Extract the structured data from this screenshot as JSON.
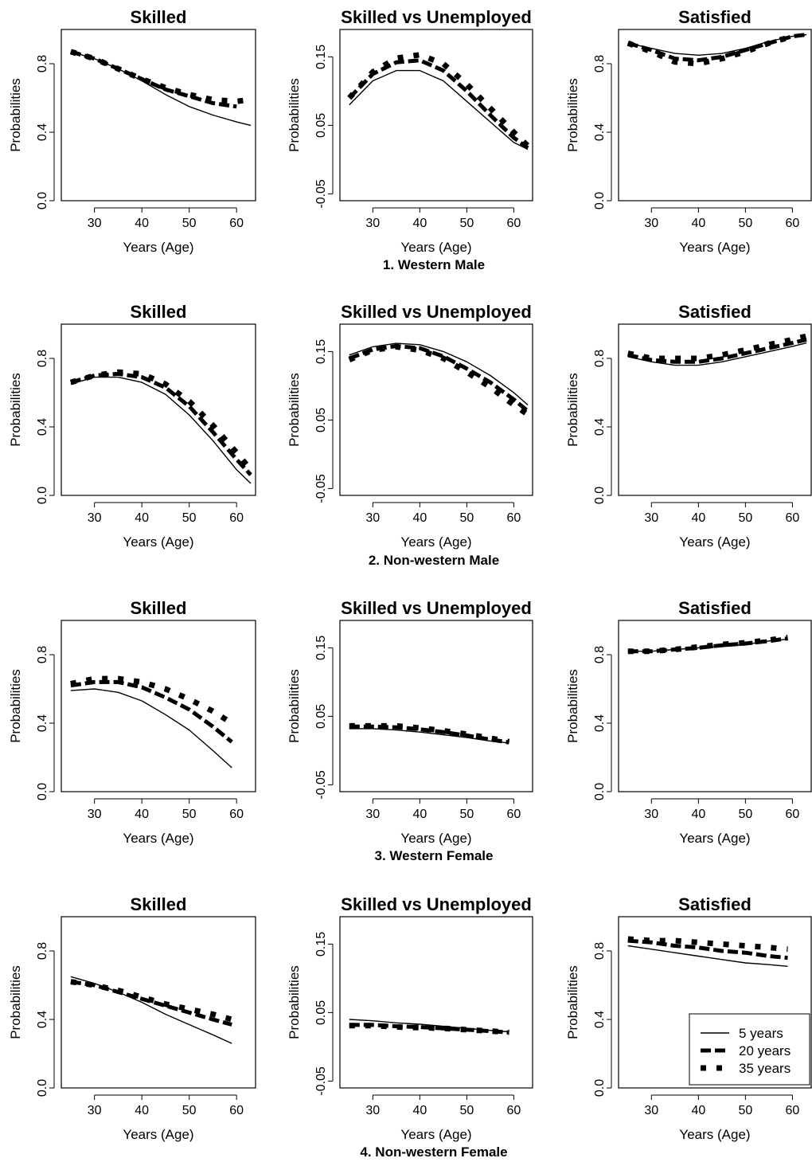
{
  "figure": {
    "panel_titles": [
      "Skilled",
      "Skilled vs Unemployed",
      "Satisfied"
    ],
    "row_titles": [
      "1. Western Male",
      "2. Non-western Male",
      "3. Western Female",
      "4. Non-western Female"
    ],
    "xlabel": "Years (Age)",
    "ylabel": "Probabilities",
    "legend": [
      "5 years",
      "20 years",
      "35 years"
    ],
    "colors": {
      "line": "#000000",
      "background": "#ffffff"
    }
  },
  "chart_data": [
    {
      "type": "line",
      "group": "1. Western Male",
      "title": "Skilled",
      "xlabel": "Years (Age)",
      "ylabel": "Probabilities",
      "xlim": [
        23,
        64
      ],
      "ylim": [
        0,
        1
      ],
      "xticks": [
        30,
        40,
        50,
        60
      ],
      "yticks": [
        "0.0",
        "0.4",
        "0.8"
      ],
      "x": [
        25,
        30,
        35,
        40,
        45,
        50,
        55,
        60,
        63
      ],
      "series": [
        {
          "name": "5 years",
          "values": [
            0.87,
            0.83,
            0.77,
            0.7,
            0.62,
            0.55,
            0.5,
            0.46,
            0.44
          ]
        },
        {
          "name": "20 years",
          "values": [
            0.87,
            0.83,
            0.77,
            0.71,
            0.65,
            0.61,
            0.57,
            0.55,
            null
          ]
        },
        {
          "name": "35 years",
          "values": [
            0.87,
            0.83,
            0.77,
            0.71,
            0.66,
            0.62,
            0.59,
            0.58,
            0.59
          ]
        }
      ]
    },
    {
      "type": "line",
      "group": "1. Western Male",
      "title": "Skilled vs Unemployed",
      "xlabel": "Years (Age)",
      "ylabel": "Probabilities",
      "xlim": [
        23,
        64
      ],
      "ylim": [
        -0.06,
        0.19
      ],
      "xticks": [
        30,
        40,
        50,
        60
      ],
      "yticks": [
        "-0.05",
        "0.05",
        "0.15"
      ],
      "x": [
        25,
        30,
        35,
        40,
        45,
        50,
        55,
        60,
        63
      ],
      "series": [
        {
          "name": "5 years",
          "values": [
            0.08,
            0.115,
            0.13,
            0.13,
            0.115,
            0.085,
            0.055,
            0.025,
            0.015
          ]
        },
        {
          "name": "20 years",
          "values": [
            0.09,
            0.125,
            0.142,
            0.145,
            0.13,
            0.1,
            0.065,
            0.032,
            0.017
          ]
        },
        {
          "name": "35 years",
          "values": [
            0.09,
            0.128,
            0.148,
            0.153,
            0.14,
            0.11,
            0.075,
            0.04,
            0.02
          ]
        }
      ]
    },
    {
      "type": "line",
      "group": "1. Western Male",
      "title": "Satisfied",
      "xlabel": "Years (Age)",
      "ylabel": "Probabilities",
      "xlim": [
        23,
        64
      ],
      "ylim": [
        0,
        1
      ],
      "xticks": [
        30,
        40,
        50,
        60
      ],
      "yticks": [
        "0.0",
        "0.4",
        "0.8"
      ],
      "x": [
        25,
        30,
        35,
        40,
        45,
        50,
        55,
        60,
        63
      ],
      "series": [
        {
          "name": "5 years",
          "values": [
            0.92,
            0.89,
            0.86,
            0.85,
            0.86,
            0.89,
            0.93,
            0.96,
            0.97
          ]
        },
        {
          "name": "20 years",
          "values": [
            0.92,
            0.88,
            0.83,
            0.82,
            0.84,
            0.88,
            0.92,
            0.96,
            0.97
          ]
        },
        {
          "name": "35 years",
          "values": [
            0.92,
            0.87,
            0.81,
            0.8,
            0.83,
            0.87,
            0.92,
            0.96,
            null
          ]
        }
      ]
    },
    {
      "type": "line",
      "group": "2. Non-western Male",
      "title": "Skilled",
      "xlabel": "Years (Age)",
      "ylabel": "Probabilities",
      "xlim": [
        23,
        64
      ],
      "ylim": [
        0,
        1
      ],
      "xticks": [
        30,
        40,
        50,
        60
      ],
      "yticks": [
        "0.0",
        "0.4",
        "0.8"
      ],
      "x": [
        25,
        30,
        35,
        40,
        45,
        50,
        55,
        60,
        63
      ],
      "series": [
        {
          "name": "5 years",
          "values": [
            0.65,
            0.69,
            0.69,
            0.66,
            0.59,
            0.47,
            0.32,
            0.15,
            0.07
          ]
        },
        {
          "name": "20 years",
          "values": [
            0.66,
            0.7,
            0.71,
            0.69,
            0.63,
            0.52,
            0.37,
            0.21,
            0.12
          ]
        },
        {
          "name": "35 years",
          "values": [
            0.66,
            0.7,
            0.72,
            0.71,
            0.65,
            0.55,
            0.41,
            0.25,
            0.15
          ]
        }
      ]
    },
    {
      "type": "line",
      "group": "2. Non-western Male",
      "title": "Skilled vs Unemployed",
      "xlabel": "Years (Age)",
      "ylabel": "Probabilities",
      "xlim": [
        23,
        64
      ],
      "ylim": [
        -0.06,
        0.19
      ],
      "xticks": [
        30,
        40,
        50,
        60
      ],
      "yticks": [
        "-0.05",
        "0.05",
        "0.15"
      ],
      "x": [
        25,
        30,
        35,
        40,
        45,
        50,
        55,
        60,
        63
      ],
      "series": [
        {
          "name": "5 years",
          "values": [
            0.145,
            0.157,
            0.162,
            0.16,
            0.15,
            0.135,
            0.115,
            0.09,
            0.072
          ]
        },
        {
          "name": "20 years",
          "values": [
            0.14,
            0.153,
            0.158,
            0.155,
            0.143,
            0.125,
            0.105,
            0.08,
            0.063
          ]
        },
        {
          "name": "35 years",
          "values": [
            0.138,
            0.152,
            0.157,
            0.152,
            0.14,
            0.12,
            0.098,
            0.072,
            0.058
          ]
        }
      ]
    },
    {
      "type": "line",
      "group": "2. Non-western Male",
      "title": "Satisfied",
      "xlabel": "Years (Age)",
      "ylabel": "Probabilities",
      "xlim": [
        23,
        64
      ],
      "ylim": [
        0,
        1
      ],
      "xticks": [
        30,
        40,
        50,
        60
      ],
      "yticks": [
        "0.0",
        "0.4",
        "0.8"
      ],
      "x": [
        25,
        30,
        35,
        40,
        45,
        50,
        55,
        60,
        63
      ],
      "series": [
        {
          "name": "5 years",
          "values": [
            0.81,
            0.78,
            0.76,
            0.76,
            0.78,
            0.81,
            0.84,
            0.87,
            0.89
          ]
        },
        {
          "name": "20 years",
          "values": [
            0.82,
            0.79,
            0.78,
            0.78,
            0.8,
            0.83,
            0.86,
            0.89,
            0.91
          ]
        },
        {
          "name": "35 years",
          "values": [
            0.83,
            0.8,
            0.8,
            0.8,
            0.82,
            0.85,
            0.88,
            0.91,
            0.93
          ]
        }
      ]
    },
    {
      "type": "line",
      "group": "3. Western Female",
      "title": "Skilled",
      "xlabel": "Years (Age)",
      "ylabel": "Probabilities",
      "xlim": [
        23,
        64
      ],
      "ylim": [
        0,
        1
      ],
      "xticks": [
        30,
        40,
        50,
        60
      ],
      "yticks": [
        "0.0",
        "0.4",
        "0.8"
      ],
      "x": [
        25,
        30,
        35,
        40,
        45,
        50,
        55,
        59
      ],
      "series": [
        {
          "name": "5 years",
          "values": [
            0.59,
            0.6,
            0.58,
            0.53,
            0.45,
            0.36,
            0.24,
            0.14
          ]
        },
        {
          "name": "20 years",
          "values": [
            0.62,
            0.64,
            0.64,
            0.61,
            0.55,
            0.48,
            0.38,
            0.29
          ]
        },
        {
          "name": "35 years",
          "values": [
            0.63,
            0.66,
            0.66,
            0.64,
            0.6,
            0.54,
            0.47,
            0.4
          ]
        }
      ]
    },
    {
      "type": "line",
      "group": "3. Western Female",
      "title": "Skilled vs Unemployed",
      "xlabel": "Years (Age)",
      "ylabel": "Probabilities",
      "xlim": [
        23,
        64
      ],
      "ylim": [
        -0.06,
        0.19
      ],
      "xticks": [
        30,
        40,
        50,
        60
      ],
      "yticks": [
        "-0.05",
        "0.05",
        "0.15"
      ],
      "x": [
        25,
        30,
        35,
        40,
        45,
        50,
        55,
        59
      ],
      "series": [
        {
          "name": "5 years",
          "values": [
            0.032,
            0.032,
            0.03,
            0.027,
            0.023,
            0.019,
            0.014,
            0.011
          ]
        },
        {
          "name": "20 years",
          "values": [
            0.035,
            0.035,
            0.034,
            0.031,
            0.027,
            0.022,
            0.016,
            0.012
          ]
        },
        {
          "name": "35 years",
          "values": [
            0.036,
            0.036,
            0.036,
            0.033,
            0.029,
            0.024,
            0.018,
            0.013
          ]
        }
      ]
    },
    {
      "type": "line",
      "group": "3. Western Female",
      "title": "Satisfied",
      "xlabel": "Years (Age)",
      "ylabel": "Probabilities",
      "xlim": [
        23,
        64
      ],
      "ylim": [
        0,
        1
      ],
      "xticks": [
        30,
        40,
        50,
        60
      ],
      "yticks": [
        "0.0",
        "0.4",
        "0.8"
      ],
      "x": [
        25,
        30,
        35,
        40,
        45,
        50,
        55,
        59
      ],
      "series": [
        {
          "name": "5 years",
          "values": [
            0.82,
            0.82,
            0.83,
            0.84,
            0.85,
            0.86,
            0.88,
            0.89
          ]
        },
        {
          "name": "20 years",
          "values": [
            0.82,
            0.82,
            0.83,
            0.84,
            0.855,
            0.865,
            0.88,
            0.895
          ]
        },
        {
          "name": "35 years",
          "values": [
            0.82,
            0.82,
            0.83,
            0.845,
            0.86,
            0.87,
            0.885,
            0.9
          ]
        }
      ]
    },
    {
      "type": "line",
      "group": "4. Non-western Female",
      "title": "Skilled",
      "xlabel": "Years (Age)",
      "ylabel": "Probabilities",
      "xlim": [
        23,
        64
      ],
      "ylim": [
        0,
        1
      ],
      "xticks": [
        30,
        40,
        50,
        60
      ],
      "yticks": [
        "0.0",
        "0.4",
        "0.8"
      ],
      "x": [
        25,
        30,
        35,
        40,
        45,
        50,
        55,
        59
      ],
      "series": [
        {
          "name": "5 years",
          "values": [
            0.65,
            0.61,
            0.56,
            0.5,
            0.43,
            0.37,
            0.31,
            0.26
          ]
        },
        {
          "name": "20 years",
          "values": [
            0.62,
            0.6,
            0.56,
            0.52,
            0.48,
            0.44,
            0.4,
            0.37
          ]
        },
        {
          "name": "35 years",
          "values": [
            0.62,
            0.6,
            0.57,
            0.53,
            0.49,
            0.46,
            0.43,
            0.4
          ]
        }
      ]
    },
    {
      "type": "line",
      "group": "4. Non-western Female",
      "title": "Skilled vs Unemployed",
      "xlabel": "Years (Age)",
      "ylabel": "Probabilities",
      "xlim": [
        23,
        64
      ],
      "ylim": [
        -0.06,
        0.19
      ],
      "xticks": [
        30,
        40,
        50,
        60
      ],
      "yticks": [
        "-0.05",
        "0.05",
        "0.15"
      ],
      "x": [
        25,
        30,
        35,
        40,
        45,
        50,
        55,
        59
      ],
      "series": [
        {
          "name": "5 years",
          "values": [
            0.04,
            0.038,
            0.035,
            0.033,
            0.03,
            0.027,
            0.024,
            0.022
          ]
        },
        {
          "name": "20 years",
          "values": [
            0.032,
            0.032,
            0.03,
            0.029,
            0.027,
            0.025,
            0.023,
            0.021
          ]
        },
        {
          "name": "35 years",
          "values": [
            0.031,
            0.031,
            0.029,
            0.028,
            0.027,
            0.025,
            0.023,
            0.021
          ]
        }
      ]
    },
    {
      "type": "line",
      "group": "4. Non-western Female",
      "title": "Satisfied",
      "xlabel": "Years (Age)",
      "ylabel": "Probabilities",
      "xlim": [
        23,
        64
      ],
      "ylim": [
        0,
        1
      ],
      "xticks": [
        30,
        40,
        50,
        60
      ],
      "yticks": [
        "0.0",
        "0.4",
        "0.8"
      ],
      "x": [
        25,
        30,
        35,
        40,
        45,
        50,
        55,
        59
      ],
      "legend": "bottom-right",
      "series": [
        {
          "name": "5 years",
          "values": [
            0.83,
            0.81,
            0.79,
            0.77,
            0.75,
            0.73,
            0.72,
            0.71
          ]
        },
        {
          "name": "20 years",
          "values": [
            0.86,
            0.85,
            0.83,
            0.82,
            0.8,
            0.79,
            0.77,
            0.76
          ]
        },
        {
          "name": "35 years",
          "values": [
            0.87,
            0.86,
            0.86,
            0.85,
            0.84,
            0.83,
            0.82,
            0.81
          ]
        }
      ]
    }
  ]
}
